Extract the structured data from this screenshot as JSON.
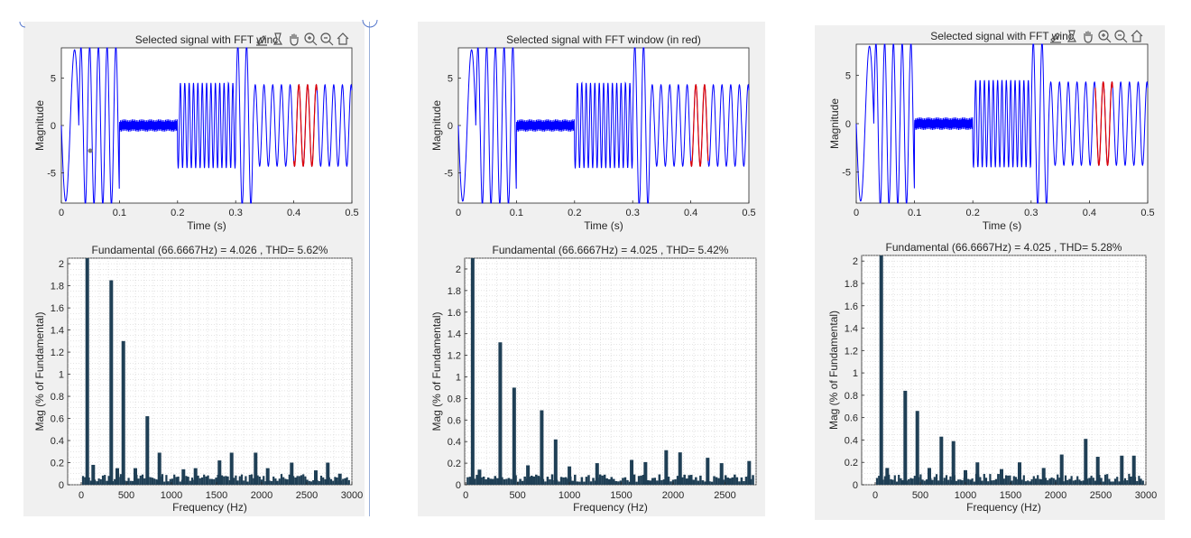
{
  "colors": {
    "signal": "#0000ff",
    "window": "#e00000",
    "bar": "#1f3f55",
    "axis": "#262626",
    "grid": "#c8c8c8"
  },
  "toolbar_icons": [
    "brush-icon",
    "data-tips-icon",
    "pan-hand-icon",
    "zoom-in-icon",
    "zoom-out-icon",
    "home-icon"
  ],
  "figures": [
    {
      "time_plot": {
        "title": "Selected signal with FFT winc",
        "xlabel": "Time (s)",
        "ylabel": "Magnitude",
        "xlim": [
          0,
          0.5
        ],
        "ylim": [
          -8.2,
          8.2
        ],
        "xticks": [
          0,
          0.1,
          0.2,
          0.3,
          0.4,
          0.5
        ],
        "yticks": [
          -5,
          0,
          5
        ],
        "window": [
          0.4,
          0.44
        ]
      },
      "chart_data": {
        "type": "bar",
        "title": "Fundamental (66.6667Hz) = 4.026 , THD= 5.62%",
        "xlabel": "Frequency (Hz)",
        "ylabel": "Mag (% of Fundamental)",
        "xlim": [
          -150,
          3000
        ],
        "ylim": [
          0,
          2.05
        ],
        "xticks": [
          0,
          500,
          1000,
          1500,
          2000,
          2500,
          3000
        ],
        "yticks": [
          0,
          0.2,
          0.4,
          0.6,
          0.8,
          1,
          1.2,
          1.4,
          1.6,
          1.8,
          2
        ],
        "bars": [
          [
            67,
            2.05
          ],
          [
            333,
            1.85
          ],
          [
            467,
            1.3
          ],
          [
            733,
            0.62
          ],
          [
            867,
            0.29
          ],
          [
            1667,
            0.29
          ],
          [
            1933,
            0.29
          ],
          [
            1533,
            0.22
          ],
          [
            2333,
            0.2
          ],
          [
            2733,
            0.2
          ],
          [
            133,
            0.18
          ],
          [
            400,
            0.15
          ],
          [
            600,
            0.15
          ],
          [
            1133,
            0.14
          ],
          [
            1267,
            0.15
          ],
          [
            2067,
            0.15
          ],
          [
            2600,
            0.13
          ],
          [
            2867,
            0.1
          ]
        ],
        "baseline": 0.07
      }
    },
    {
      "time_plot": {
        "title": "Selected signal with FFT window (in red)",
        "xlabel": "Time (s)",
        "ylabel": "Magnitude",
        "xlim": [
          0,
          0.5
        ],
        "ylim": [
          -8.2,
          8.2
        ],
        "xticks": [
          0,
          0.1,
          0.2,
          0.3,
          0.4,
          0.5
        ],
        "yticks": [
          -5,
          0,
          5
        ],
        "window": [
          0.4,
          0.43
        ]
      },
      "chart_data": {
        "type": "bar",
        "title": "Fundamental (66.6667Hz) = 4.025 , THD= 5.42%",
        "xlabel": "Frequency (Hz)",
        "ylabel": "Mag (% of Fundamental)",
        "xlim": [
          -10,
          2800
        ],
        "ylim": [
          0,
          2.1
        ],
        "xticks": [
          0,
          500,
          1000,
          1500,
          2000,
          2500
        ],
        "yticks": [
          0,
          0.2,
          0.4,
          0.6,
          0.8,
          1,
          1.2,
          1.4,
          1.6,
          1.8,
          2
        ],
        "bars": [
          [
            67,
            2.1
          ],
          [
            333,
            1.32
          ],
          [
            467,
            0.9
          ],
          [
            733,
            0.69
          ],
          [
            867,
            0.42
          ],
          [
            1933,
            0.32
          ],
          [
            2067,
            0.3
          ],
          [
            1600,
            0.23
          ],
          [
            2333,
            0.25
          ],
          [
            2733,
            0.22
          ],
          [
            133,
            0.14
          ],
          [
            600,
            0.18
          ],
          [
            1000,
            0.17
          ],
          [
            1267,
            0.2
          ],
          [
            1733,
            0.21
          ],
          [
            2467,
            0.2
          ]
        ],
        "baseline": 0.07
      }
    },
    {
      "time_plot": {
        "title": "Selected signal with FFT winc",
        "xlabel": "Time (s)",
        "ylabel": "Magnitude",
        "xlim": [
          0,
          0.5
        ],
        "ylim": [
          -8.2,
          8.2
        ],
        "xticks": [
          0,
          0.1,
          0.2,
          0.3,
          0.4,
          0.5
        ],
        "yticks": [
          -5,
          0,
          5
        ],
        "window": [
          0.41,
          0.44
        ]
      },
      "chart_data": {
        "type": "bar",
        "title": "Fundamental (66.6667Hz) = 4.025 , THD= 5.28%",
        "xlabel": "Frequency (Hz)",
        "ylabel": "Mag (% of Fundamental)",
        "xlim": [
          -150,
          3000
        ],
        "ylim": [
          0,
          2.05
        ],
        "xticks": [
          0,
          500,
          1000,
          1500,
          2000,
          2500,
          3000
        ],
        "yticks": [
          0,
          0.2,
          0.4,
          0.6,
          0.8,
          1,
          1.2,
          1.4,
          1.6,
          1.8,
          2
        ],
        "bars": [
          [
            67,
            2.05
          ],
          [
            333,
            0.84
          ],
          [
            467,
            0.66
          ],
          [
            733,
            0.43
          ],
          [
            867,
            0.39
          ],
          [
            2333,
            0.41
          ],
          [
            2067,
            0.27
          ],
          [
            2467,
            0.25
          ],
          [
            2733,
            0.26
          ],
          [
            2867,
            0.26
          ],
          [
            1133,
            0.2
          ],
          [
            1600,
            0.2
          ],
          [
            133,
            0.15
          ],
          [
            600,
            0.15
          ],
          [
            1000,
            0.13
          ],
          [
            1867,
            0.15
          ],
          [
            1400,
            0.14
          ]
        ],
        "baseline": 0.07
      }
    }
  ]
}
